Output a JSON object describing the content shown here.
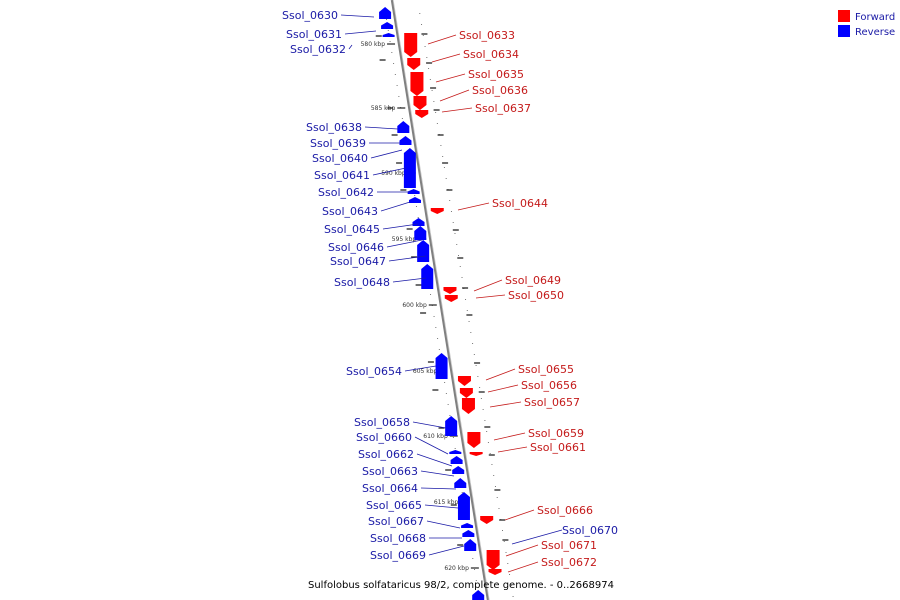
{
  "caption": "Sulfolobus solfataricus 98/2, complete genome. - 0..2668974",
  "legend": [
    {
      "label": "Forward",
      "color": "#ff0000"
    },
    {
      "label": "Reverse",
      "color": "#0000ff"
    }
  ],
  "scale_ticks": [
    "580 kbp",
    "585 kbp",
    "590 kbp",
    "595 kbp",
    "600 kbp",
    "605 kbp",
    "610 kbp",
    "615 kbp",
    "620 kbp"
  ],
  "genes_reverse": [
    "Ssol_0630",
    "Ssol_0631",
    "Ssol_0632",
    "Ssol_0638",
    "Ssol_0639",
    "Ssol_0640",
    "Ssol_0641",
    "Ssol_0642",
    "Ssol_0643",
    "Ssol_0645",
    "Ssol_0646",
    "Ssol_0647",
    "Ssol_0648",
    "Ssol_0654",
    "Ssol_0658",
    "Ssol_0660",
    "Ssol_0662",
    "Ssol_0663",
    "Ssol_0664",
    "Ssol_0665",
    "Ssol_0667",
    "Ssol_0668",
    "Ssol_0669",
    "Ssol_0670"
  ],
  "genes_forward": [
    "Ssol_0633",
    "Ssol_0634",
    "Ssol_0635",
    "Ssol_0636",
    "Ssol_0637",
    "Ssol_0644",
    "Ssol_0649",
    "Ssol_0650",
    "Ssol_0655",
    "Ssol_0656",
    "Ssol_0657",
    "Ssol_0659",
    "Ssol_0661",
    "Ssol_0666",
    "Ssol_0671",
    "Ssol_0672"
  ],
  "colors": {
    "forward": "#ff0000",
    "reverse": "#0000ff",
    "label_forward": "#c41a1a",
    "label_reverse": "#1a1aa6",
    "axis": "#808080"
  }
}
